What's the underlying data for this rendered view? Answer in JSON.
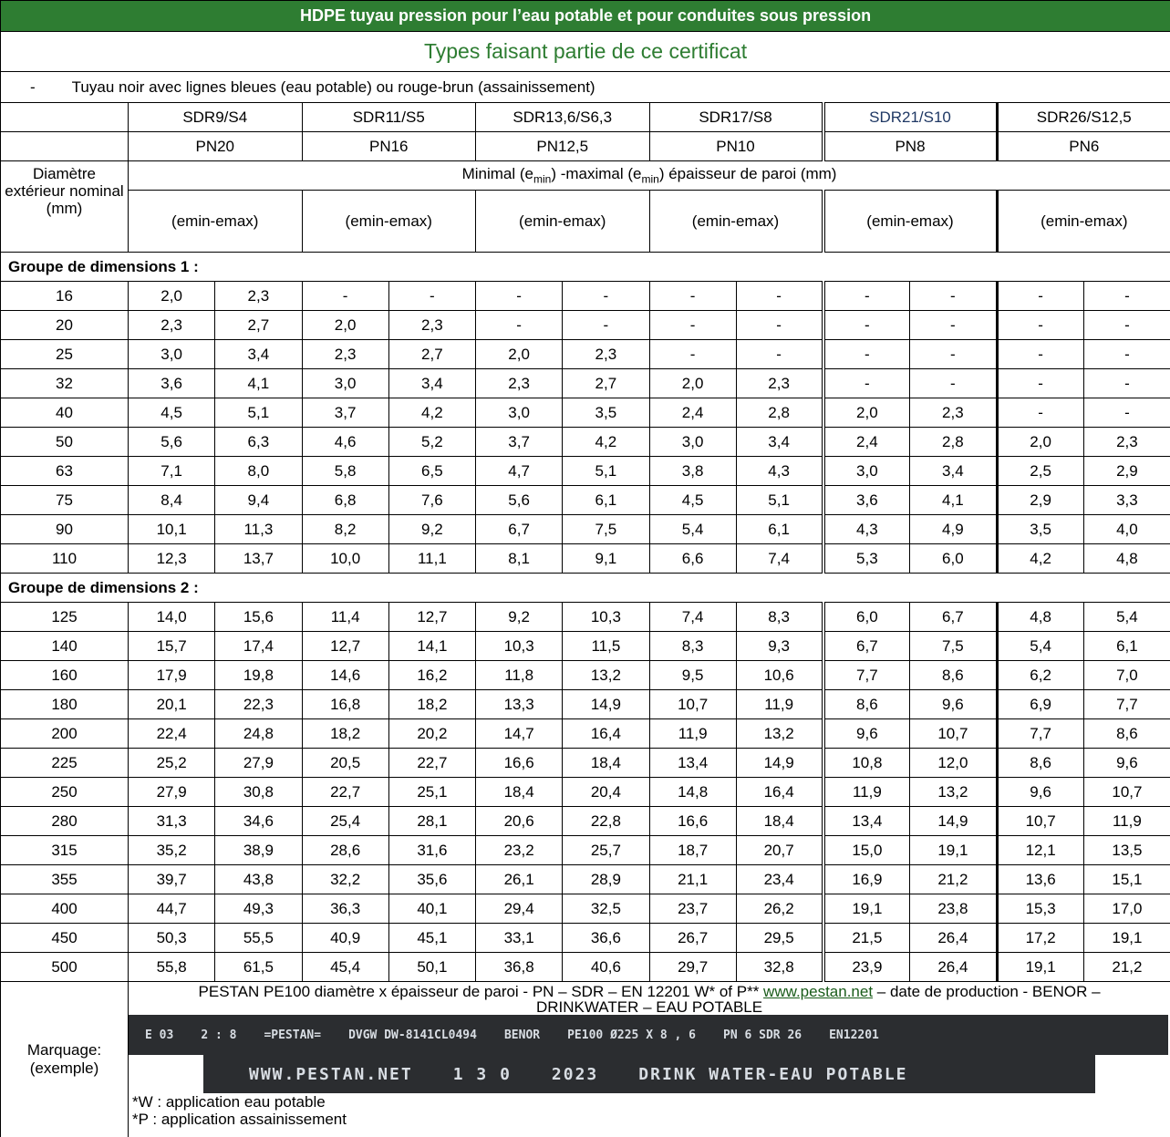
{
  "header": {
    "title": "HDPE tuyau pression pour l’eau potable et pour conduites sous pression",
    "subtitle": "Types faisant partie de ce certificat",
    "note_bullet": "-",
    "note": "Tuyau noir avec lignes bleues (eau potable) ou rouge-brun (assainissement)"
  },
  "columns": [
    {
      "sdr": "SDR9/S4",
      "pn": "PN20",
      "range": "(emin-emax)"
    },
    {
      "sdr": "SDR11/S5",
      "pn": "PN16",
      "range": "(emin-emax)"
    },
    {
      "sdr": "SDR13,6/S6,3",
      "pn": "PN12,5",
      "range": "(emin-emax)"
    },
    {
      "sdr": "SDR17/S8",
      "pn": "PN10",
      "range": "(emin-emax)"
    },
    {
      "sdr": "SDR21/S10",
      "pn": "PN8",
      "range": "(emin-emax)"
    },
    {
      "sdr": "SDR26/S12,5",
      "pn": "PN6",
      "range": "(emin-emax)"
    }
  ],
  "diameter_label": "Diamètre extérieur nominal (mm)",
  "thickness_header": [
    "Minimal (e",
    "min",
    ") -maximal (e",
    "min",
    ") épaisseur de paroi (mm)"
  ],
  "groups": [
    {
      "label": "Groupe de dimensions 1 :",
      "rows": [
        {
          "diameter": "16",
          "values": [
            "2,0",
            "2,3",
            "-",
            "-",
            "-",
            "-",
            "-",
            "-",
            "-",
            "-",
            "-",
            "-"
          ]
        },
        {
          "diameter": "20",
          "values": [
            "2,3",
            "2,7",
            "2,0",
            "2,3",
            "-",
            "-",
            "-",
            "-",
            "-",
            "-",
            "-",
            "-"
          ]
        },
        {
          "diameter": "25",
          "values": [
            "3,0",
            "3,4",
            "2,3",
            "2,7",
            "2,0",
            "2,3",
            "-",
            "-",
            "-",
            "-",
            "-",
            "-"
          ]
        },
        {
          "diameter": "32",
          "values": [
            "3,6",
            "4,1",
            "3,0",
            "3,4",
            "2,3",
            "2,7",
            "2,0",
            "2,3",
            "-",
            "-",
            "-",
            "-"
          ]
        },
        {
          "diameter": "40",
          "values": [
            "4,5",
            "5,1",
            "3,7",
            "4,2",
            "3,0",
            "3,5",
            "2,4",
            "2,8",
            "2,0",
            "2,3",
            "-",
            "-"
          ]
        },
        {
          "diameter": "50",
          "values": [
            "5,6",
            "6,3",
            "4,6",
            "5,2",
            "3,7",
            "4,2",
            "3,0",
            "3,4",
            "2,4",
            "2,8",
            "2,0",
            "2,3"
          ]
        },
        {
          "diameter": "63",
          "values": [
            "7,1",
            "8,0",
            "5,8",
            "6,5",
            "4,7",
            "5,1",
            "3,8",
            "4,3",
            "3,0",
            "3,4",
            "2,5",
            "2,9"
          ]
        },
        {
          "diameter": "75",
          "values": [
            "8,4",
            "9,4",
            "6,8",
            "7,6",
            "5,6",
            "6,1",
            "4,5",
            "5,1",
            "3,6",
            "4,1",
            "2,9",
            "3,3"
          ]
        },
        {
          "diameter": "90",
          "values": [
            "10,1",
            "11,3",
            "8,2",
            "9,2",
            "6,7",
            "7,5",
            "5,4",
            "6,1",
            "4,3",
            "4,9",
            "3,5",
            "4,0"
          ]
        },
        {
          "diameter": "110",
          "values": [
            "12,3",
            "13,7",
            "10,0",
            "11,1",
            "8,1",
            "9,1",
            "6,6",
            "7,4",
            "5,3",
            "6,0",
            "4,2",
            "4,8"
          ]
        }
      ]
    },
    {
      "label": "Groupe de dimensions 2 :",
      "rows": [
        {
          "diameter": "125",
          "values": [
            "14,0",
            "15,6",
            "11,4",
            "12,7",
            "9,2",
            "10,3",
            "7,4",
            "8,3",
            "6,0",
            "6,7",
            "4,8",
            "5,4"
          ]
        },
        {
          "diameter": "140",
          "values": [
            "15,7",
            "17,4",
            "12,7",
            "14,1",
            "10,3",
            "11,5",
            "8,3",
            "9,3",
            "6,7",
            "7,5",
            "5,4",
            "6,1"
          ]
        },
        {
          "diameter": "160",
          "values": [
            "17,9",
            "19,8",
            "14,6",
            "16,2",
            "11,8",
            "13,2",
            "9,5",
            "10,6",
            "7,7",
            "8,6",
            "6,2",
            "7,0"
          ]
        },
        {
          "diameter": "180",
          "values": [
            "20,1",
            "22,3",
            "16,8",
            "18,2",
            "13,3",
            "14,9",
            "10,7",
            "11,9",
            "8,6",
            "9,6",
            "6,9",
            "7,7"
          ]
        },
        {
          "diameter": "200",
          "values": [
            "22,4",
            "24,8",
            "18,2",
            "20,2",
            "14,7",
            "16,4",
            "11,9",
            "13,2",
            "9,6",
            "10,7",
            "7,7",
            "8,6"
          ]
        },
        {
          "diameter": "225",
          "values": [
            "25,2",
            "27,9",
            "20,5",
            "22,7",
            "16,6",
            "18,4",
            "13,4",
            "14,9",
            "10,8",
            "12,0",
            "8,6",
            "9,6"
          ]
        },
        {
          "diameter": "250",
          "values": [
            "27,9",
            "30,8",
            "22,7",
            "25,1",
            "18,4",
            "20,4",
            "14,8",
            "16,4",
            "11,9",
            "13,2",
            "9,6",
            "10,7"
          ]
        },
        {
          "diameter": "280",
          "values": [
            "31,3",
            "34,6",
            "25,4",
            "28,1",
            "20,6",
            "22,8",
            "16,6",
            "18,4",
            "13,4",
            "14,9",
            "10,7",
            "11,9"
          ]
        },
        {
          "diameter": "315",
          "values": [
            "35,2",
            "38,9",
            "28,6",
            "31,6",
            "23,2",
            "25,7",
            "18,7",
            "20,7",
            "15,0",
            "19,1",
            "12,1",
            "13,5"
          ]
        },
        {
          "diameter": "355",
          "values": [
            "39,7",
            "43,8",
            "32,2",
            "35,6",
            "26,1",
            "28,9",
            "21,1",
            "23,4",
            "16,9",
            "21,2",
            "13,6",
            "15,1"
          ]
        },
        {
          "diameter": "400",
          "values": [
            "44,7",
            "49,3",
            "36,3",
            "40,1",
            "29,4",
            "32,5",
            "23,7",
            "26,2",
            "19,1",
            "23,8",
            "15,3",
            "17,0"
          ]
        },
        {
          "diameter": "450",
          "values": [
            "50,3",
            "55,5",
            "40,9",
            "45,1",
            "33,1",
            "36,6",
            "26,7",
            "29,5",
            "21,5",
            "26,4",
            "17,2",
            "19,1"
          ]
        },
        {
          "diameter": "500",
          "values": [
            "55,8",
            "61,5",
            "45,4",
            "50,1",
            "36,8",
            "40,6",
            "29,7",
            "32,8",
            "23,9",
            "26,4",
            "19,1",
            "21,2"
          ]
        }
      ]
    }
  ],
  "marking": {
    "label": [
      "Marquage:",
      "(exemple)"
    ],
    "text_before": "PESTAN PE100 diamètre  x épaisseur de paroi - PN – SDR – EN 12201 W* of P** ",
    "link": "www.pestan.net",
    "text_after": " – date de production  - BENOR – DRINKWATER – EAU POTABLE",
    "photo_line1": [
      "E 03",
      "2 : 8",
      "=PESTAN=",
      "DVGW DW-8141CL0494",
      "BENOR",
      "PE100 Ø225  X  8 , 6",
      "PN 6 SDR 26",
      "EN12201"
    ],
    "photo_line2": [
      "WWW.PESTAN.NET",
      "1  3  0",
      "2023",
      "DRINK WATER-EAU POTABLE"
    ],
    "footnotes": [
      "*W : application eau potable",
      "*P : application assainissement"
    ]
  }
}
